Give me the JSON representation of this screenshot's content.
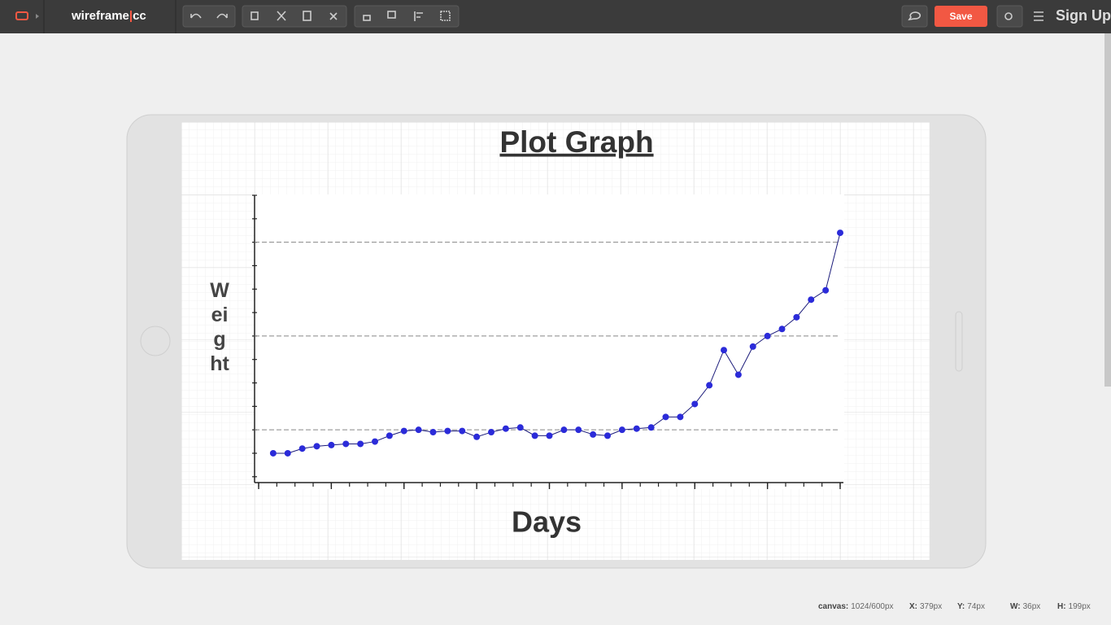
{
  "app": {
    "logo": [
      "wireframe",
      "|",
      "cc"
    ],
    "save": "Save",
    "sign_up": "Sign Up"
  },
  "status": [
    {
      "label": "canvas:",
      "value": "1024/600px"
    },
    {
      "label": "X:",
      "value": "379px"
    },
    {
      "label": "Y:",
      "value": "74px"
    },
    {
      "label": "W:",
      "value": "36px"
    },
    {
      "label": "H:",
      "value": "199px"
    }
  ],
  "chart_data": {
    "type": "line",
    "title": "Plot Graph",
    "x_label": "Days",
    "y_label": "Weight",
    "x": [
      1,
      2,
      3,
      4,
      5,
      6,
      7,
      8,
      9,
      10,
      11,
      12,
      13,
      14,
      15,
      16,
      17,
      18,
      19,
      20,
      21,
      22,
      23,
      24,
      25,
      26,
      27,
      28,
      29,
      30,
      31,
      32,
      33,
      34,
      35,
      36,
      37,
      38,
      39,
      40
    ],
    "series": [
      {
        "color": "#2b2bd9",
        "values": [
          1.0,
          1.0,
          1.2,
          1.3,
          1.35,
          1.4,
          1.4,
          1.5,
          1.75,
          1.95,
          2.0,
          1.9,
          1.95,
          1.95,
          1.7,
          1.9,
          2.05,
          2.1,
          1.75,
          1.75,
          2.0,
          2.0,
          1.8,
          1.75,
          2.0,
          2.05,
          2.1,
          2.55,
          2.55,
          3.1,
          3.9,
          5.4,
          4.35,
          5.55,
          6.0,
          6.3,
          6.8,
          7.55,
          7.95,
          10.4
        ]
      }
    ],
    "xlim": [
      0,
      40
    ],
    "xticks": [
      0,
      1.25,
      2.5,
      3.75,
      5,
      6.25,
      7.5,
      8.75,
      10,
      11.25,
      12.5,
      13.75,
      15,
      16.25,
      17.5,
      18.75,
      20,
      21.25,
      22.5,
      23.75,
      25,
      26.25,
      27.5,
      28.75,
      30,
      31.25,
      32.5,
      33.75,
      35,
      36.25,
      37.5,
      38.75,
      40
    ],
    "xticks_major": [
      0,
      5,
      10,
      15,
      20,
      25,
      30,
      35,
      40
    ],
    "ylim": [
      -0.25,
      12
    ],
    "yticks": [
      0,
      1,
      2,
      3,
      4,
      5,
      6,
      7,
      8,
      9,
      10,
      11,
      12
    ],
    "ygrid": [
      2,
      6,
      10
    ]
  }
}
